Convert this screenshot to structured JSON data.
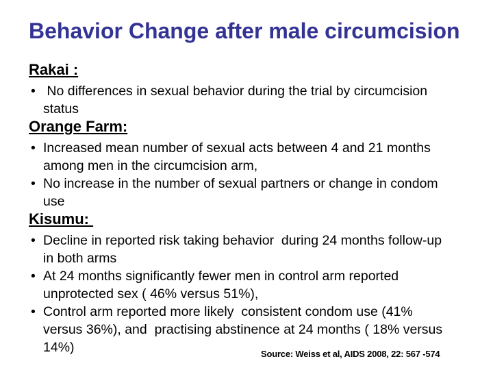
{
  "slide": {
    "title": "Behavior Change after male circumcision",
    "title_color": "#333394",
    "bullet_char": "•",
    "sections": [
      {
        "heading": "Rakai :",
        "bullets": [
          " No differences in sexual behavior during the trial by circumcision\nstatus"
        ]
      },
      {
        "heading": "Orange Farm:",
        "bullets": [
          "Increased mean number of sexual acts between 4 and 21 months\namong men in the circumcision arm,",
          "No increase in the number of sexual partners or change in condom\nuse"
        ]
      },
      {
        "heading": "Kisumu: ",
        "bullets": [
          "Decline in reported risk taking behavior  during 24 months follow-up\nin both arms",
          "At 24 months significantly fewer men in control arm reported\nunprotected sex ( 46% versus 51%),",
          "Control arm reported more likely  consistent condom use (41%\nversus 36%), and  practising abstinence at 24 months ( 18% versus\n14%)"
        ]
      }
    ],
    "source": "Source: Weiss et al, AIDS 2008, 22: 567 -574"
  }
}
